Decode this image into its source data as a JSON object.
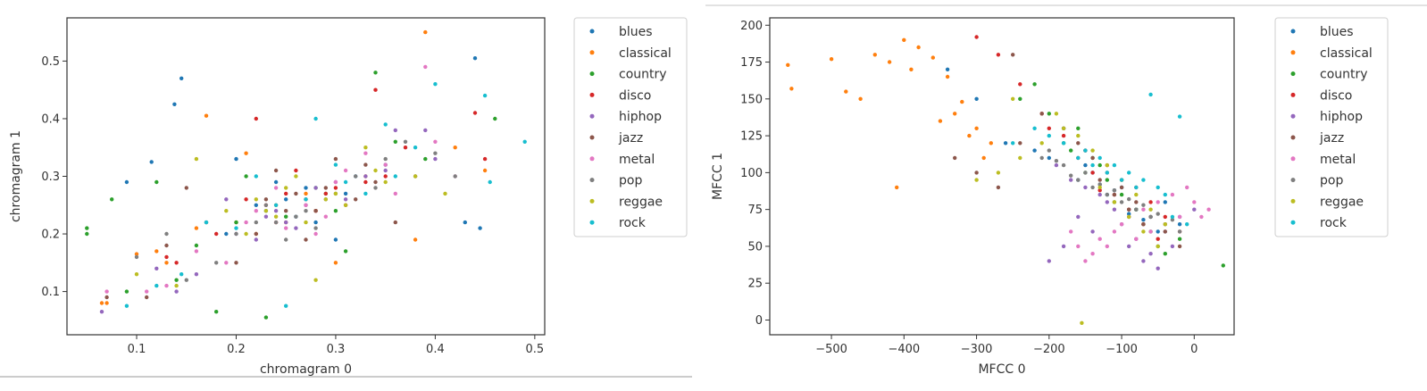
{
  "colors": [
    "#1f77b4",
    "#ff7f0e",
    "#2ca02c",
    "#d62728",
    "#9467bd",
    "#8c564b",
    "#e377c2",
    "#7f7f7f",
    "#bcbd22",
    "#17becf"
  ],
  "chart_data": [
    {
      "type": "scatter",
      "title": "",
      "xlabel": "chromagram 0",
      "ylabel": "chromagram 1",
      "xlim": [
        0.03,
        0.51
      ],
      "ylim": [
        0.025,
        0.575
      ],
      "xticks": [
        0.1,
        0.2,
        0.3,
        0.4,
        0.5
      ],
      "xtick_labels": [
        "0.1",
        "0.2",
        "0.3",
        "0.4",
        "0.5"
      ],
      "yticks": [
        0.1,
        0.2,
        0.3,
        0.4,
        0.5
      ],
      "ytick_labels": [
        "0.1",
        "0.2",
        "0.3",
        "0.4",
        "0.5"
      ],
      "legend_position": "outside-right",
      "series": [
        {
          "name": "blues",
          "x": [
            0.09,
            0.115,
            0.145,
            0.138,
            0.2,
            0.22,
            0.28,
            0.3,
            0.44,
            0.445,
            0.43,
            0.32,
            0.25,
            0.27,
            0.35,
            0.23,
            0.19,
            0.26,
            0.31,
            0.24
          ],
          "y": [
            0.29,
            0.325,
            0.47,
            0.425,
            0.33,
            0.25,
            0.22,
            0.19,
            0.505,
            0.21,
            0.22,
            0.3,
            0.26,
            0.28,
            0.32,
            0.24,
            0.2,
            0.23,
            0.27,
            0.29
          ]
        },
        {
          "name": "classical",
          "x": [
            0.07,
            0.065,
            0.1,
            0.12,
            0.13,
            0.16,
            0.17,
            0.21,
            0.2,
            0.24,
            0.28,
            0.3,
            0.39,
            0.38,
            0.42,
            0.45,
            0.27,
            0.33,
            0.25,
            0.22
          ],
          "y": [
            0.08,
            0.08,
            0.165,
            0.17,
            0.15,
            0.21,
            0.405,
            0.34,
            0.22,
            0.25,
            0.24,
            0.15,
            0.55,
            0.19,
            0.35,
            0.31,
            0.27,
            0.3,
            0.22,
            0.2
          ]
        },
        {
          "name": "country",
          "x": [
            0.05,
            0.05,
            0.075,
            0.09,
            0.12,
            0.14,
            0.16,
            0.18,
            0.21,
            0.23,
            0.25,
            0.28,
            0.3,
            0.31,
            0.34,
            0.36,
            0.39,
            0.46,
            0.29,
            0.2
          ],
          "y": [
            0.2,
            0.21,
            0.26,
            0.1,
            0.29,
            0.12,
            0.18,
            0.065,
            0.3,
            0.055,
            0.23,
            0.28,
            0.24,
            0.17,
            0.48,
            0.36,
            0.33,
            0.4,
            0.27,
            0.22
          ]
        },
        {
          "name": "disco",
          "x": [
            0.13,
            0.14,
            0.18,
            0.22,
            0.25,
            0.27,
            0.3,
            0.31,
            0.34,
            0.35,
            0.37,
            0.44,
            0.45,
            0.28,
            0.24,
            0.21,
            0.26,
            0.33,
            0.29,
            0.23
          ],
          "y": [
            0.16,
            0.15,
            0.2,
            0.4,
            0.27,
            0.26,
            0.28,
            0.25,
            0.45,
            0.3,
            0.35,
            0.41,
            0.33,
            0.24,
            0.22,
            0.26,
            0.31,
            0.29,
            0.27,
            0.25
          ]
        },
        {
          "name": "hiphop",
          "x": [
            0.065,
            0.12,
            0.14,
            0.16,
            0.2,
            0.23,
            0.25,
            0.28,
            0.3,
            0.33,
            0.36,
            0.4,
            0.39,
            0.27,
            0.22,
            0.19,
            0.24,
            0.31,
            0.35,
            0.26
          ],
          "y": [
            0.065,
            0.14,
            0.1,
            0.13,
            0.2,
            0.23,
            0.22,
            0.28,
            0.29,
            0.3,
            0.38,
            0.33,
            0.38,
            0.25,
            0.19,
            0.26,
            0.24,
            0.26,
            0.31,
            0.21
          ]
        },
        {
          "name": "jazz",
          "x": [
            0.07,
            0.11,
            0.13,
            0.15,
            0.17,
            0.22,
            0.24,
            0.26,
            0.28,
            0.3,
            0.32,
            0.34,
            0.36,
            0.38,
            0.2,
            0.25,
            0.29,
            0.23,
            0.33,
            0.27
          ],
          "y": [
            0.09,
            0.09,
            0.18,
            0.28,
            0.22,
            0.2,
            0.31,
            0.27,
            0.24,
            0.33,
            0.26,
            0.29,
            0.22,
            0.3,
            0.15,
            0.24,
            0.28,
            0.26,
            0.32,
            0.19
          ]
        },
        {
          "name": "metal",
          "x": [
            0.07,
            0.11,
            0.13,
            0.16,
            0.19,
            0.21,
            0.24,
            0.27,
            0.29,
            0.31,
            0.33,
            0.36,
            0.39,
            0.4,
            0.42,
            0.25,
            0.22,
            0.3,
            0.35,
            0.28
          ],
          "y": [
            0.1,
            0.1,
            0.11,
            0.17,
            0.15,
            0.22,
            0.28,
            0.25,
            0.23,
            0.31,
            0.34,
            0.27,
            0.49,
            0.36,
            0.3,
            0.21,
            0.24,
            0.29,
            0.32,
            0.2
          ]
        },
        {
          "name": "pop",
          "x": [
            0.1,
            0.13,
            0.15,
            0.18,
            0.2,
            0.22,
            0.25,
            0.27,
            0.29,
            0.32,
            0.34,
            0.37,
            0.4,
            0.42,
            0.23,
            0.26,
            0.3,
            0.24,
            0.35,
            0.28
          ],
          "y": [
            0.16,
            0.2,
            0.12,
            0.15,
            0.2,
            0.22,
            0.19,
            0.24,
            0.26,
            0.3,
            0.28,
            0.36,
            0.34,
            0.3,
            0.25,
            0.23,
            0.27,
            0.22,
            0.33,
            0.21
          ]
        },
        {
          "name": "reggae",
          "x": [
            0.1,
            0.14,
            0.16,
            0.19,
            0.22,
            0.24,
            0.26,
            0.28,
            0.31,
            0.33,
            0.35,
            0.38,
            0.41,
            0.21,
            0.25,
            0.29,
            0.23,
            0.34,
            0.27,
            0.3
          ],
          "y": [
            0.13,
            0.11,
            0.33,
            0.24,
            0.26,
            0.23,
            0.3,
            0.12,
            0.25,
            0.35,
            0.29,
            0.3,
            0.27,
            0.2,
            0.28,
            0.26,
            0.24,
            0.31,
            0.22,
            0.27
          ]
        },
        {
          "name": "rock",
          "x": [
            0.09,
            0.12,
            0.145,
            0.17,
            0.2,
            0.22,
            0.25,
            0.28,
            0.3,
            0.33,
            0.35,
            0.38,
            0.4,
            0.45,
            0.49,
            0.455,
            0.27,
            0.31,
            0.24,
            0.36
          ],
          "y": [
            0.075,
            0.11,
            0.13,
            0.22,
            0.21,
            0.3,
            0.075,
            0.4,
            0.32,
            0.27,
            0.39,
            0.35,
            0.46,
            0.44,
            0.36,
            0.29,
            0.26,
            0.29,
            0.25,
            0.3
          ]
        }
      ]
    },
    {
      "type": "scatter",
      "title": "",
      "xlabel": "MFCC 0",
      "ylabel": "MFCC 1",
      "xlim": [
        -585,
        55
      ],
      "ylim": [
        -10,
        205
      ],
      "xticks": [
        -500,
        -400,
        -300,
        -200,
        -100,
        0
      ],
      "xtick_labels": [
        "−500",
        "−400",
        "−300",
        "−200",
        "−100",
        "0"
      ],
      "yticks": [
        0,
        25,
        50,
        75,
        100,
        125,
        150,
        175,
        200
      ],
      "ytick_labels": [
        "0",
        "25",
        "50",
        "75",
        "100",
        "125",
        "150",
        "175",
        "200"
      ],
      "legend_position": "outside-right",
      "series": [
        {
          "name": "blues",
          "x": [
            -340,
            -300,
            -260,
            -220,
            -200,
            -180,
            -160,
            -140,
            -120,
            -100,
            -80,
            -60,
            -40,
            -20,
            -150,
            -130,
            -110,
            -90,
            -70,
            -50
          ],
          "y": [
            170,
            150,
            120,
            115,
            110,
            130,
            95,
            100,
            85,
            90,
            75,
            70,
            80,
            65,
            105,
            92,
            88,
            72,
            68,
            60
          ]
        },
        {
          "name": "classical",
          "x": [
            -560,
            -555,
            -500,
            -480,
            -460,
            -440,
            -420,
            -400,
            -380,
            -360,
            -340,
            -320,
            -300,
            -280,
            -350,
            -330,
            -310,
            -290,
            -410,
            -390
          ],
          "y": [
            173,
            157,
            177,
            155,
            150,
            180,
            175,
            190,
            185,
            178,
            165,
            148,
            130,
            120,
            135,
            140,
            125,
            110,
            90,
            170
          ]
        },
        {
          "name": "country",
          "x": [
            -240,
            -220,
            -200,
            -180,
            -160,
            -140,
            -120,
            -100,
            -80,
            -60,
            -40,
            -20,
            40,
            -150,
            -130,
            -110,
            -90,
            -70,
            -170,
            -50
          ],
          "y": [
            150,
            160,
            140,
            120,
            130,
            110,
            95,
            85,
            75,
            60,
            45,
            55,
            37,
            100,
            105,
            80,
            70,
            65,
            115,
            50
          ]
        },
        {
          "name": "disco",
          "x": [
            -300,
            -270,
            -240,
            -210,
            -180,
            -160,
            -140,
            -120,
            -100,
            -80,
            -60,
            -40,
            -20,
            -150,
            -130,
            -110,
            -90,
            -70,
            -50,
            -200
          ],
          "y": [
            192,
            180,
            160,
            140,
            125,
            110,
            100,
            105,
            95,
            90,
            80,
            70,
            60,
            115,
            88,
            85,
            75,
            65,
            55,
            130
          ]
        },
        {
          "name": "hiphop",
          "x": [
            -200,
            -180,
            -160,
            -140,
            -120,
            -100,
            -80,
            -60,
            -40,
            -20,
            0,
            -150,
            -130,
            -110,
            -90,
            -70,
            -50,
            -30,
            -170,
            -190
          ],
          "y": [
            40,
            50,
            70,
            60,
            80,
            65,
            55,
            45,
            60,
            70,
            75,
            90,
            85,
            75,
            50,
            40,
            35,
            50,
            95,
            105
          ]
        },
        {
          "name": "jazz",
          "x": [
            -330,
            -300,
            -270,
            -240,
            -210,
            -180,
            -160,
            -140,
            -120,
            -100,
            -80,
            -60,
            -40,
            -20,
            -150,
            -130,
            -110,
            -90,
            -70,
            -250
          ],
          "y": [
            110,
            100,
            90,
            120,
            140,
            130,
            120,
            110,
            100,
            90,
            80,
            70,
            60,
            50,
            115,
            95,
            85,
            75,
            65,
            180
          ]
        },
        {
          "name": "metal",
          "x": [
            -150,
            -130,
            -110,
            -90,
            -70,
            -50,
            -30,
            -10,
            10,
            20,
            -140,
            -120,
            -100,
            -80,
            -60,
            -40,
            -20,
            0,
            -160,
            -170
          ],
          "y": [
            40,
            55,
            60,
            70,
            75,
            80,
            85,
            90,
            70,
            75,
            45,
            50,
            65,
            55,
            60,
            65,
            70,
            80,
            50,
            60
          ]
        },
        {
          "name": "pop",
          "x": [
            -200,
            -180,
            -160,
            -140,
            -120,
            -100,
            -80,
            -60,
            -40,
            -20,
            -150,
            -130,
            -110,
            -90,
            -70,
            -50,
            -30,
            -170,
            -190,
            -210
          ],
          "y": [
            115,
            105,
            95,
            90,
            85,
            80,
            75,
            70,
            65,
            60,
            100,
            92,
            88,
            82,
            78,
            72,
            68,
            98,
            108,
            110
          ]
        },
        {
          "name": "reggae",
          "x": [
            -300,
            -270,
            -240,
            -210,
            -180,
            -160,
            -140,
            -120,
            -100,
            -80,
            -60,
            -40,
            -155,
            -130,
            -110,
            -90,
            -70,
            -50,
            -190,
            -250
          ],
          "y": [
            95,
            100,
            110,
            120,
            130,
            125,
            115,
            105,
            95,
            85,
            75,
            65,
            -2,
            90,
            80,
            70,
            60,
            50,
            140,
            150
          ]
        },
        {
          "name": "rock",
          "x": [
            -250,
            -220,
            -200,
            -180,
            -160,
            -140,
            -120,
            -100,
            -80,
            -60,
            -40,
            -20,
            -150,
            -130,
            -110,
            -90,
            -70,
            -50,
            -30,
            -10
          ],
          "y": [
            120,
            130,
            125,
            120,
            110,
            105,
            100,
            95,
            90,
            153,
            85,
            138,
            115,
            110,
            105,
            100,
            95,
            90,
            70,
            65
          ]
        }
      ]
    }
  ]
}
